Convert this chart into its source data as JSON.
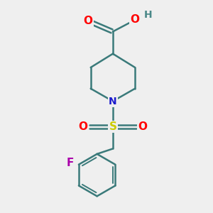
{
  "background_color": "#efefef",
  "bond_color": "#3a7a7a",
  "atom_colors": {
    "O": "#ff0000",
    "N": "#1a1acc",
    "S": "#cccc00",
    "F": "#aa00aa",
    "H": "#4a8888",
    "C": "#3a7a7a"
  },
  "figsize": [
    3.0,
    3.0
  ],
  "dpi": 100
}
